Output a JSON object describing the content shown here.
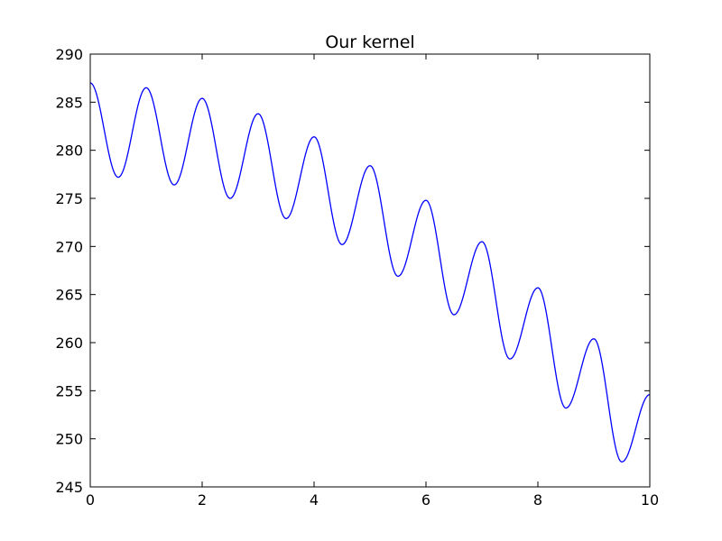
{
  "chart_data": {
    "type": "line",
    "title": "Our kernel",
    "xlabel": "",
    "ylabel": "",
    "xlim": [
      0,
      10
    ],
    "ylim": [
      245,
      290
    ],
    "x_ticks": [
      0,
      2,
      4,
      6,
      8,
      10
    ],
    "y_ticks": [
      245,
      250,
      255,
      260,
      265,
      270,
      275,
      280,
      285,
      290
    ],
    "grid": false,
    "legend": "none",
    "series": [
      {
        "color": "#0000ff",
        "x": [
          0,
          0.5,
          1,
          1.5,
          2,
          2.5,
          3,
          3.5,
          4,
          4.5,
          5,
          5.5,
          6,
          6.5,
          7,
          7.5,
          8,
          8.5,
          9,
          9.5,
          10
        ],
        "y": [
          287.0,
          277.2,
          286.5,
          276.4,
          285.4,
          275.0,
          283.8,
          272.9,
          281.4,
          270.2,
          278.4,
          266.9,
          274.8,
          262.9,
          270.5,
          258.3,
          265.7,
          253.2,
          260.4,
          247.6,
          254.6
        ]
      }
    ]
  }
}
